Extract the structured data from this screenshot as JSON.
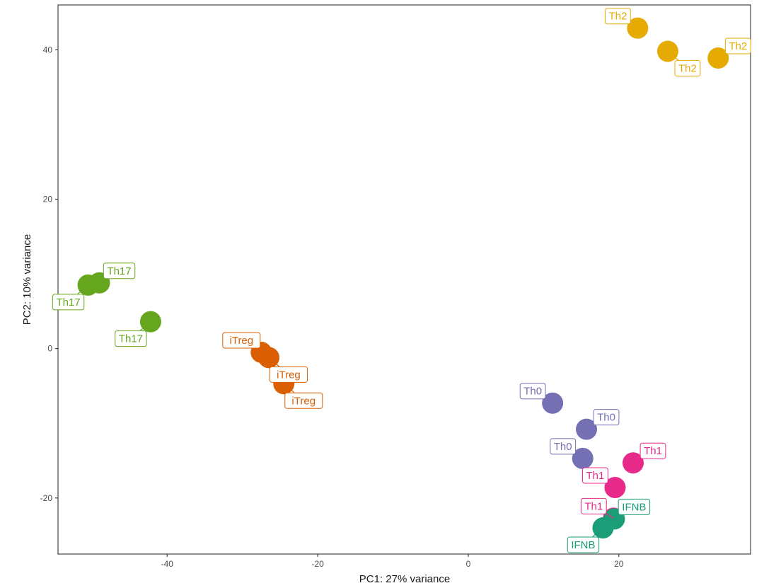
{
  "chart_data": {
    "type": "scatter",
    "title": "",
    "xlabel": "PC1: 27% variance",
    "ylabel": "PC2: 10% variance",
    "xlim": [
      -54.5,
      37.5
    ],
    "ylim": [
      -27.5,
      46.0
    ],
    "xticks": [
      -40,
      -20,
      0,
      20
    ],
    "yticks": [
      -20,
      0,
      20,
      40
    ],
    "grid": false,
    "legend": "none",
    "groups": {
      "Th2": "#e6ab02",
      "Th17": "#66a61e",
      "iTreg": "#d95f02",
      "Th0": "#7570b3",
      "Th1": "#e7298a",
      "IFNB": "#1b9e77"
    },
    "points": [
      {
        "label": "Th2",
        "x": 22.5,
        "y": 42.9,
        "anchor": "nw"
      },
      {
        "label": "Th2",
        "x": 26.5,
        "y": 39.8,
        "anchor": "se"
      },
      {
        "label": "Th2",
        "x": 33.2,
        "y": 38.9,
        "anchor": "ne"
      },
      {
        "label": "Th17",
        "x": -49.0,
        "y": 8.8,
        "anchor": "ne"
      },
      {
        "label": "Th17",
        "x": -50.5,
        "y": 8.5,
        "anchor": "sw"
      },
      {
        "label": "Th17",
        "x": -42.2,
        "y": 3.6,
        "anchor": "sw"
      },
      {
        "label": "iTreg",
        "x": -27.5,
        "y": -0.5,
        "anchor": "nw"
      },
      {
        "label": "iTreg",
        "x": -26.5,
        "y": -1.2,
        "anchor": "se"
      },
      {
        "label": "iTreg",
        "x": -24.5,
        "y": -4.7,
        "anchor": "se"
      },
      {
        "label": "Th0",
        "x": 11.2,
        "y": -7.3,
        "anchor": "nw"
      },
      {
        "label": "Th0",
        "x": 15.7,
        "y": -10.8,
        "anchor": "ne"
      },
      {
        "label": "Th0",
        "x": 15.2,
        "y": -14.7,
        "anchor": "nw"
      },
      {
        "label": "Th1",
        "x": 21.9,
        "y": -15.3,
        "anchor": "ne"
      },
      {
        "label": "Th1",
        "x": 19.5,
        "y": -18.6,
        "anchor": "nw"
      },
      {
        "label": "Th1",
        "x": 19.3,
        "y": -22.7,
        "anchor": "nw"
      },
      {
        "label": "IFNB",
        "x": 19.4,
        "y": -22.8,
        "anchor": "ne"
      },
      {
        "label": "IFNB",
        "x": 17.9,
        "y": -24.0,
        "anchor": "sw"
      }
    ]
  }
}
